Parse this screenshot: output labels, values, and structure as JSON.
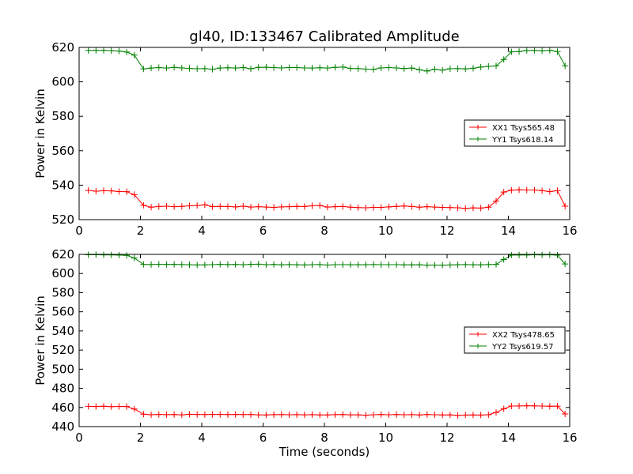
{
  "chart_data": {
    "type": "line",
    "title": "gl40, ID:133467 Calibrated Amplitude",
    "xlabel": "Time (seconds)",
    "panels": [
      {
        "ylabel": "Power in Kelvin",
        "xlim": [
          0,
          16
        ],
        "ylim": [
          520,
          620
        ],
        "xticks": [
          "0",
          "2",
          "4",
          "6",
          "8",
          "10",
          "12",
          "14",
          "16"
        ],
        "yticks": [
          "520",
          "540",
          "560",
          "580",
          "600",
          "620"
        ],
        "legend_position": "center-right",
        "series": [
          {
            "name": "XX1 Tsys565.48",
            "color": "#ff0000",
            "x": [
              0.3,
              0.55,
              0.8,
              1.05,
              1.3,
              1.55,
              1.8,
              2.1,
              2.35,
              2.6,
              2.85,
              3.1,
              3.35,
              3.6,
              3.85,
              4.1,
              4.35,
              4.6,
              4.85,
              5.1,
              5.35,
              5.6,
              5.85,
              6.1,
              6.35,
              6.6,
              6.85,
              7.1,
              7.35,
              7.6,
              7.85,
              8.1,
              8.35,
              8.6,
              8.85,
              9.1,
              9.35,
              9.6,
              9.85,
              10.1,
              10.35,
              10.6,
              10.85,
              11.1,
              11.35,
              11.6,
              11.85,
              12.1,
              12.35,
              12.6,
              12.85,
              13.1,
              13.35,
              13.6,
              13.85,
              14.1,
              14.35,
              14.6,
              14.85,
              15.1,
              15.35,
              15.6,
              15.85
            ],
            "values": [
              537,
              536.5,
              536.8,
              536.7,
              536.3,
              536.2,
              534.5,
              528.3,
              527.2,
              527.6,
              527.8,
              527.5,
              527.7,
              528,
              528.2,
              528.6,
              527.5,
              527.7,
              527.6,
              527.4,
              527.8,
              527.3,
              527.5,
              527.3,
              527.1,
              527.4,
              527.5,
              527.7,
              527.6,
              528,
              528.2,
              527.3,
              527.5,
              527.6,
              527.2,
              527,
              526.9,
              527.1,
              527.1,
              527.4,
              527.7,
              527.9,
              527.6,
              527.2,
              527.5,
              527.3,
              527.1,
              527,
              526.9,
              526.5,
              526.8,
              526.7,
              527.2,
              530.8,
              536,
              537.1,
              537.3,
              537.2,
              537.2,
              536.8,
              536.3,
              536.8,
              527.8
            ]
          },
          {
            "name": "YY1 Tsys618.14",
            "color": "#008000",
            "x": [
              0.3,
              0.55,
              0.8,
              1.05,
              1.3,
              1.55,
              1.8,
              2.1,
              2.35,
              2.6,
              2.85,
              3.1,
              3.35,
              3.6,
              3.85,
              4.1,
              4.35,
              4.6,
              4.85,
              5.1,
              5.35,
              5.6,
              5.85,
              6.1,
              6.35,
              6.6,
              6.85,
              7.1,
              7.35,
              7.6,
              7.85,
              8.1,
              8.35,
              8.6,
              8.85,
              9.1,
              9.35,
              9.6,
              9.85,
              10.1,
              10.35,
              10.6,
              10.85,
              11.1,
              11.35,
              11.6,
              11.85,
              12.1,
              12.35,
              12.6,
              12.85,
              13.1,
              13.35,
              13.6,
              13.85,
              14.1,
              14.35,
              14.6,
              14.85,
              15.1,
              15.35,
              15.6,
              15.85
            ],
            "values": [
              618.2,
              618.3,
              618.3,
              618.1,
              617.9,
              617.3,
              615.5,
              607.5,
              608,
              608.3,
              608,
              608.4,
              608.1,
              607.8,
              607.6,
              607.7,
              607.3,
              608,
              608.2,
              608,
              608.3,
              607.6,
              608.4,
              608.5,
              608.3,
              608.1,
              608.3,
              608.3,
              608.1,
              608,
              608.2,
              608,
              608.4,
              608.6,
              607.8,
              607.7,
              607.4,
              607.2,
              608.1,
              608.3,
              608.1,
              607.7,
              608,
              607,
              606.3,
              607.3,
              606.8,
              607.6,
              607.7,
              607.5,
              607.9,
              608.6,
              609,
              609.3,
              613,
              617.4,
              617.6,
              618.2,
              618.3,
              618,
              618.3,
              617.6,
              609.3
            ]
          }
        ]
      },
      {
        "ylabel": "Power in Kelvin",
        "xlim": [
          0,
          16
        ],
        "ylim": [
          440,
          620
        ],
        "xticks": [
          "0",
          "2",
          "4",
          "6",
          "8",
          "10",
          "12",
          "14",
          "16"
        ],
        "yticks": [
          "440",
          "460",
          "480",
          "500",
          "520",
          "540",
          "560",
          "580",
          "600",
          "620"
        ],
        "legend_position": "center-right",
        "series": [
          {
            "name": "XX2 Tsys478.65",
            "color": "#ff0000",
            "x": [
              0.3,
              0.55,
              0.8,
              1.05,
              1.3,
              1.55,
              1.8,
              2.1,
              2.35,
              2.6,
              2.85,
              3.1,
              3.35,
              3.6,
              3.85,
              4.1,
              4.35,
              4.6,
              4.85,
              5.1,
              5.35,
              5.6,
              5.85,
              6.1,
              6.35,
              6.6,
              6.85,
              7.1,
              7.35,
              7.6,
              7.85,
              8.1,
              8.35,
              8.6,
              8.85,
              9.1,
              9.35,
              9.6,
              9.85,
              10.1,
              10.35,
              10.6,
              10.85,
              11.1,
              11.35,
              11.6,
              11.85,
              12.1,
              12.35,
              12.6,
              12.85,
              13.1,
              13.35,
              13.6,
              13.85,
              14.1,
              14.35,
              14.6,
              14.85,
              15.1,
              15.35,
              15.6,
              15.85
            ],
            "values": [
              461.2,
              461,
              461.3,
              460.9,
              461.1,
              461,
              458.4,
              453,
              452.4,
              452.7,
              452.5,
              452.6,
              452.3,
              452.8,
              452.7,
              452.6,
              452.7,
              452.7,
              452.6,
              452.7,
              452.6,
              452.6,
              452.3,
              452.2,
              452.5,
              452.6,
              452.4,
              452.5,
              452.3,
              452.5,
              452.2,
              452.2,
              452.5,
              452.6,
              452.3,
              452.3,
              451.9,
              452.4,
              452.6,
              452.4,
              452.6,
              452.4,
              452.5,
              452.2,
              452.6,
              452.4,
              452.2,
              452.3,
              451.7,
              452.1,
              452.2,
              452.1,
              452.4,
              454.8,
              458.6,
              461.5,
              461.6,
              461.8,
              461.7,
              461.5,
              461.3,
              461.4,
              453.2
            ]
          },
          {
            "name": "YY2 Tsys619.57",
            "color": "#008000",
            "x": [
              0.3,
              0.55,
              0.8,
              1.05,
              1.3,
              1.55,
              1.8,
              2.1,
              2.35,
              2.6,
              2.85,
              3.1,
              3.35,
              3.6,
              3.85,
              4.1,
              4.35,
              4.6,
              4.85,
              5.1,
              5.35,
              5.6,
              5.85,
              6.1,
              6.35,
              6.6,
              6.85,
              7.1,
              7.35,
              7.6,
              7.85,
              8.1,
              8.35,
              8.6,
              8.85,
              9.1,
              9.35,
              9.6,
              9.85,
              10.1,
              10.35,
              10.6,
              10.85,
              11.1,
              11.35,
              11.6,
              11.85,
              12.1,
              12.35,
              12.6,
              12.85,
              13.1,
              13.35,
              13.6,
              13.85,
              14.1,
              14.35,
              14.6,
              14.85,
              15.1,
              15.35,
              15.6,
              15.85
            ],
            "values": [
              619.6,
              619.7,
              619.5,
              619.5,
              619.3,
              619,
              616.2,
              609.6,
              609.4,
              609.7,
              609.5,
              609.6,
              609.4,
              609.2,
              609,
              609.1,
              609.3,
              609.6,
              609.4,
              609.5,
              609.2,
              609.6,
              609.8,
              609.2,
              609.5,
              609.1,
              609.4,
              609.2,
              609,
              609.3,
              609.4,
              608.9,
              609.3,
              609.3,
              609.2,
              609.2,
              609.2,
              609.4,
              609.3,
              609.3,
              609.3,
              609.1,
              609.1,
              609.2,
              608.7,
              608.9,
              608.7,
              609,
              609.2,
              609.4,
              609.2,
              609.1,
              609.4,
              609.6,
              614.6,
              619.3,
              619.4,
              619.4,
              619.6,
              619.5,
              619.6,
              619.2,
              610
            ]
          }
        ]
      }
    ]
  }
}
